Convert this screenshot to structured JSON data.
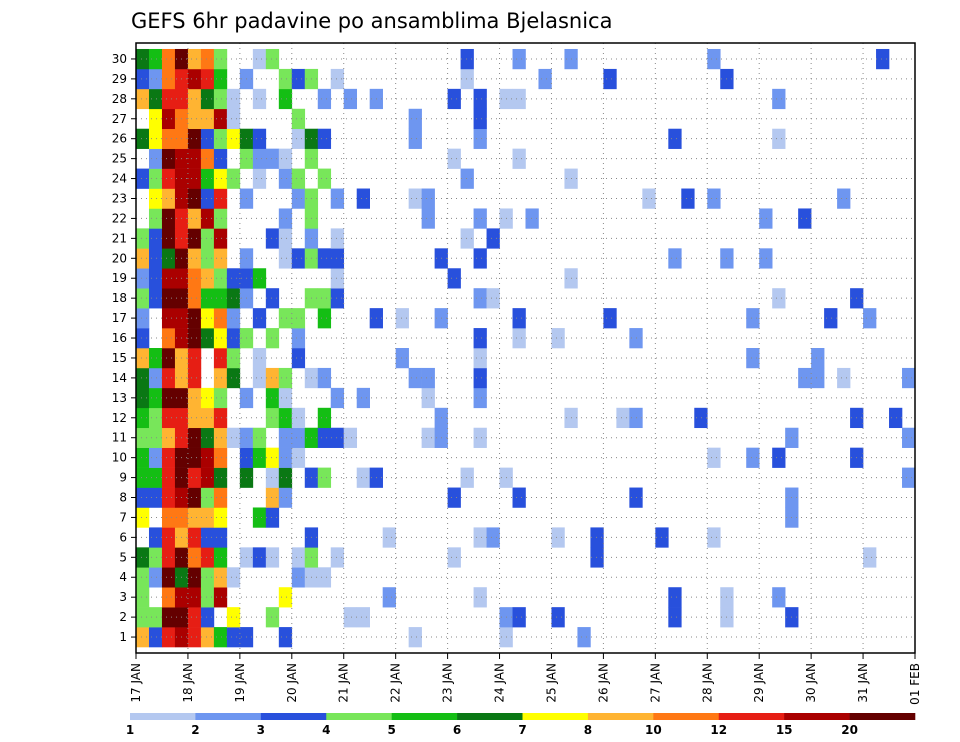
{
  "title": "GEFS 6hr padavine po ansamblima Bjelasnica",
  "chart_data": {
    "type": "heatmap",
    "title": "GEFS 6hr padavine po ansamblima Bjelasnica",
    "x_tick_labels": [
      "17 JAN",
      "18 JAN",
      "19 JAN",
      "20 JAN",
      "21 JAN",
      "22 JAN",
      "23 JAN",
      "24 JAN",
      "25 JAN",
      "26 JAN",
      "27 JAN",
      "28 JAN",
      "29 JAN",
      "30 JAN",
      "31 JAN",
      "01 FEB"
    ],
    "y_tick_labels": [
      "1",
      "2",
      "3",
      "4",
      "5",
      "6",
      "7",
      "8",
      "9",
      "10",
      "11",
      "12",
      "13",
      "14",
      "15",
      "16",
      "17",
      "18",
      "19",
      "20",
      "21",
      "22",
      "23",
      "24",
      "25",
      "26",
      "27",
      "28",
      "29",
      "30"
    ],
    "grid": true,
    "colorbar": {
      "labels": [
        "1",
        "2",
        "3",
        "4",
        "5",
        "6",
        "7",
        "8",
        "10",
        "12",
        "15",
        "20"
      ],
      "colors": [
        "#b4c8f0",
        "#6e96f0",
        "#2850dc",
        "#78e65a",
        "#14be14",
        "#0a7814",
        "#ffff00",
        "#ffb432",
        "#ff7814",
        "#e61e14",
        "#aa0000",
        "#640000"
      ]
    },
    "legend_placement": "bottom"
  }
}
